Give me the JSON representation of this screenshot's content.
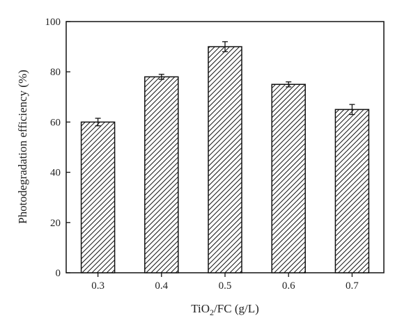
{
  "chart_data": {
    "type": "bar",
    "categories": [
      "0.3",
      "0.4",
      "0.5",
      "0.6",
      "0.7"
    ],
    "values": [
      60,
      78,
      90,
      75,
      65
    ],
    "errors": [
      1.5,
      1.0,
      2.0,
      1.0,
      2.0
    ],
    "xlabel": {
      "main": "TiO",
      "sub": "2",
      "rest": "/FC (g/L)"
    },
    "ylabel": "Photodegradation efficiency (%)",
    "ylim": [
      0,
      100
    ],
    "yticks": [
      "0",
      "20",
      "40",
      "60",
      "80",
      "100"
    ],
    "bar_pattern": "diagonal-hatch",
    "grid": false,
    "colors": {
      "bar_stroke": "#111111",
      "hatch": "#111111",
      "background": "#ffffff"
    }
  }
}
